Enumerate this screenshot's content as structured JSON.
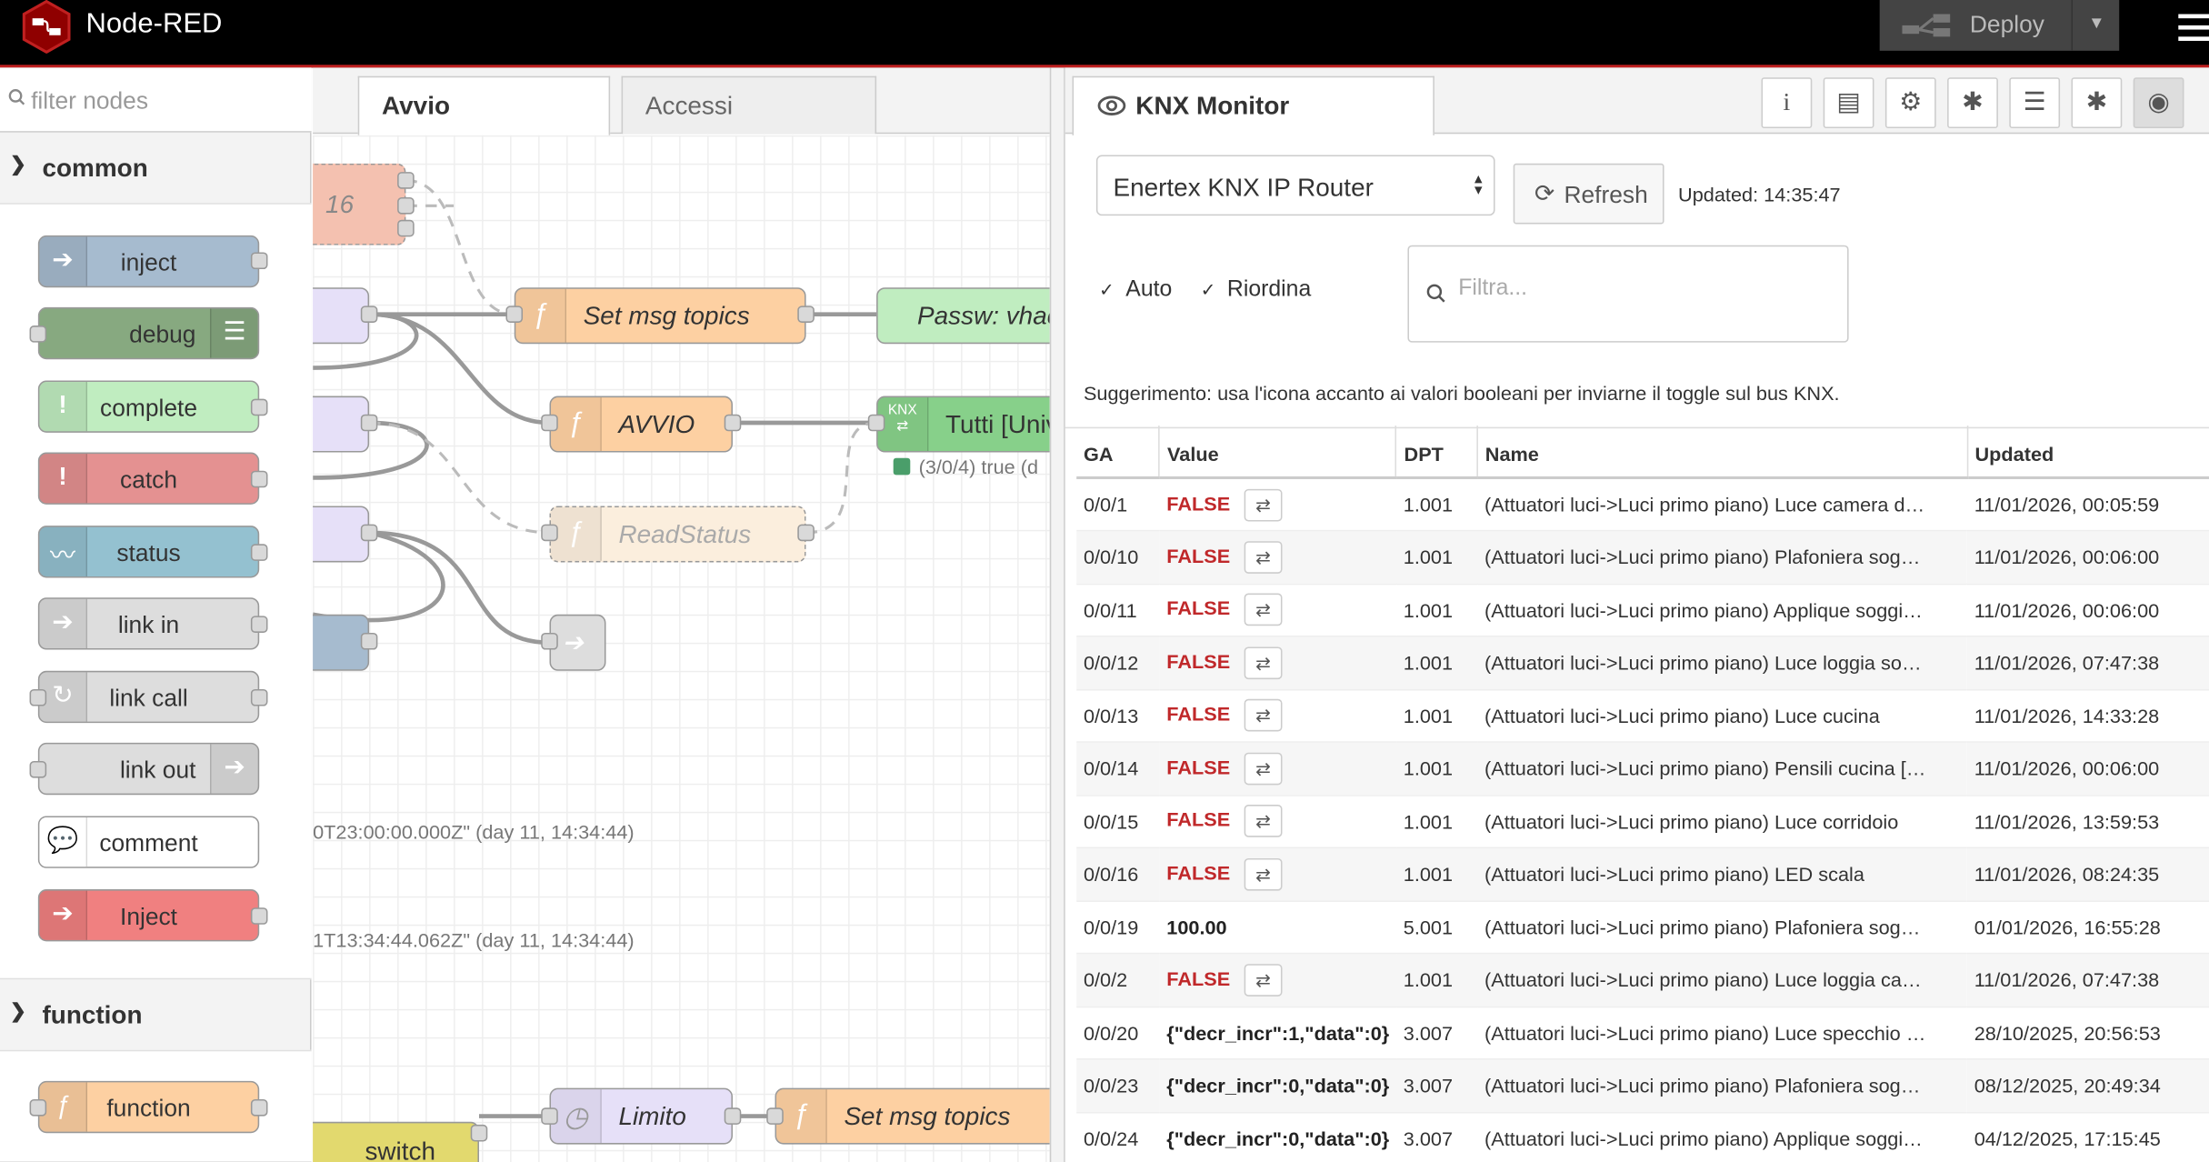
{
  "header": {
    "title": "Node-RED",
    "deploy_label": "Deploy"
  },
  "palette": {
    "filter_placeholder": "filter nodes",
    "categories": [
      {
        "label": "common"
      },
      {
        "label": "function"
      }
    ],
    "nodes": [
      {
        "label": "inject",
        "color": "#a6bbcf"
      },
      {
        "label": "debug",
        "color": "#87a980"
      },
      {
        "label": "complete",
        "color": "#c0edc0"
      },
      {
        "label": "catch",
        "color": "#e49191"
      },
      {
        "label": "status",
        "color": "#94c1d0"
      },
      {
        "label": "link in",
        "color": "#dddddd"
      },
      {
        "label": "link call",
        "color": "#dddddd"
      },
      {
        "label": "link out",
        "color": "#dddddd"
      },
      {
        "label": "comment",
        "color": "#ffffff"
      },
      {
        "label": "Inject",
        "color": "#f08080"
      },
      {
        "label": "function",
        "color": "#fdd0a2"
      }
    ]
  },
  "workspace": {
    "tabs": [
      {
        "label": "Avvio"
      },
      {
        "label": "Accessi"
      }
    ],
    "nodes": [
      {
        "label": "16"
      },
      {
        "label": "Set msg topics"
      },
      {
        "label": "Passw: vhac"
      },
      {
        "label": "AVVIO"
      },
      {
        "label": "Tutti [Univ"
      },
      {
        "label": "ReadStatus"
      },
      {
        "label": "Limito"
      },
      {
        "label": "Set msg topics"
      },
      {
        "label": "switch"
      }
    ],
    "status_text": "(3/0/4) true (d",
    "debug_lines": [
      "0T23:00:00.000Z\" (day 11, 14:34:44)",
      "1T13:34:44.062Z\" (day 11, 14:34:44)"
    ]
  },
  "sidebar": {
    "tab_label": "KNX Monitor",
    "gateway": "Enertex KNX IP Router",
    "refresh_label": "Refresh",
    "updated": "Updated: 14:35:47",
    "auto_label": "Auto",
    "reorder_label": "Riordina",
    "filter_placeholder": "Filtra...",
    "hint": "Suggerimento: usa l'icona accanto ai valori booleani per inviarne il toggle sul bus KNX.",
    "columns": [
      "GA",
      "Value",
      "DPT",
      "Name",
      "Updated"
    ],
    "rows": [
      {
        "ga": "0/0/1",
        "value": "FALSE",
        "dpt": "1.001",
        "name": "(Attuatori luci->Luci primo piano) Luce camera d…",
        "updated": "11/01/2026, 00:05:59"
      },
      {
        "ga": "0/0/10",
        "value": "FALSE",
        "dpt": "1.001",
        "name": "(Attuatori luci->Luci primo piano) Plafoniera sog…",
        "updated": "11/01/2026, 00:06:00"
      },
      {
        "ga": "0/0/11",
        "value": "FALSE",
        "dpt": "1.001",
        "name": "(Attuatori luci->Luci primo piano) Applique soggi…",
        "updated": "11/01/2026, 00:06:00"
      },
      {
        "ga": "0/0/12",
        "value": "FALSE",
        "dpt": "1.001",
        "name": "(Attuatori luci->Luci primo piano) Luce loggia so…",
        "updated": "11/01/2026, 07:47:38"
      },
      {
        "ga": "0/0/13",
        "value": "FALSE",
        "dpt": "1.001",
        "name": "(Attuatori luci->Luci primo piano) Luce cucina",
        "updated": "11/01/2026, 14:33:28"
      },
      {
        "ga": "0/0/14",
        "value": "FALSE",
        "dpt": "1.001",
        "name": "(Attuatori luci->Luci primo piano) Pensili cucina […",
        "updated": "11/01/2026, 00:06:00"
      },
      {
        "ga": "0/0/15",
        "value": "FALSE",
        "dpt": "1.001",
        "name": "(Attuatori luci->Luci primo piano) Luce corridoio",
        "updated": "11/01/2026, 13:59:53"
      },
      {
        "ga": "0/0/16",
        "value": "FALSE",
        "dpt": "1.001",
        "name": "(Attuatori luci->Luci primo piano) LED scala",
        "updated": "11/01/2026, 08:24:35"
      },
      {
        "ga": "0/0/19",
        "value": "100.00",
        "dpt": "5.001",
        "name": "(Attuatori luci->Luci primo piano) Plafoniera sog…",
        "updated": "01/01/2026, 16:55:28"
      },
      {
        "ga": "0/0/2",
        "value": "FALSE",
        "dpt": "1.001",
        "name": "(Attuatori luci->Luci primo piano) Luce loggia ca…",
        "updated": "11/01/2026, 07:47:38"
      },
      {
        "ga": "0/0/20",
        "value": "{\"decr_incr\":1,\"data\":0}",
        "dpt": "3.007",
        "name": "(Attuatori luci->Luci primo piano) Luce specchio …",
        "updated": "28/10/2025, 20:56:53"
      },
      {
        "ga": "0/0/23",
        "value": "{\"decr_incr\":0,\"data\":0}",
        "dpt": "3.007",
        "name": "(Attuatori luci->Luci primo piano) Plafoniera sog…",
        "updated": "08/12/2025, 20:49:34"
      },
      {
        "ga": "0/0/24",
        "value": "{\"decr_incr\":0,\"data\":0}",
        "dpt": "3.007",
        "name": "(Attuatori luci->Luci primo piano) Applique soggi…",
        "updated": "04/12/2025, 17:15:45"
      }
    ]
  }
}
